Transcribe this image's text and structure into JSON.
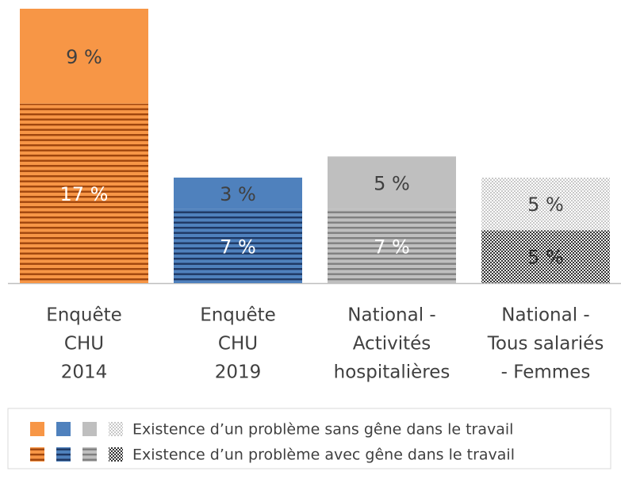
{
  "chart_data": {
    "type": "stacked-bar",
    "categories": [
      [
        "Enquête",
        "CHU",
        "2014"
      ],
      [
        "Enquête",
        "CHU",
        "2019"
      ],
      [
        "National -",
        "Activités",
        "hospitalières"
      ],
      [
        "National -",
        "Tous salariés",
        "- Femmes"
      ]
    ],
    "series": [
      {
        "name": "Existence d’un problème avec gêne dans le travail",
        "values": [
          17,
          7,
          7,
          5
        ],
        "value_labels": [
          "17 %",
          "7 %",
          "7 %",
          "5 %"
        ],
        "colors": [
          "#f79646",
          "#4f81bd",
          "#bfbfbf",
          "#f2f2f2"
        ],
        "hatch_colors": [
          "#a0460e",
          "#1f3864",
          "#7f7f7f",
          "#333333"
        ],
        "patterns": [
          "stripes",
          "stripes",
          "stripes",
          "checker"
        ],
        "label_colors": [
          "#ffffff",
          "#ffffff",
          "#ffffff",
          "#262626"
        ]
      },
      {
        "name": "Existence d’un problème sans gêne dans le travail",
        "values": [
          9,
          3,
          5,
          5
        ],
        "value_labels": [
          "9 %",
          "3 %",
          "5 %",
          "5 %"
        ],
        "colors": [
          "#f79646",
          "#4f81bd",
          "#bfbfbf",
          "#ffffff"
        ],
        "hatch_colors": [
          "#f79646",
          "#4f81bd",
          "#bfbfbf",
          "#c8c8c8"
        ],
        "patterns": [
          "solid",
          "solid",
          "solid",
          "checker"
        ],
        "label_colors": [
          "#404040",
          "#404040",
          "#404040",
          "#404040"
        ]
      }
    ]
  }
}
